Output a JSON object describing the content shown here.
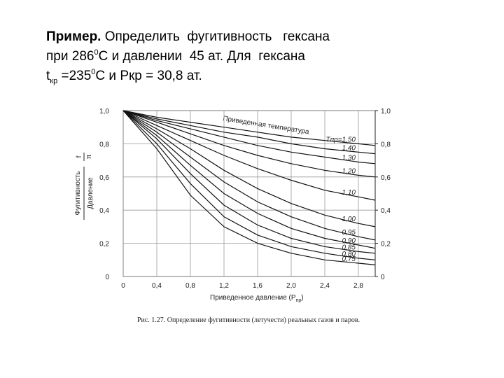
{
  "text": {
    "line1": {
      "bold": "Пример.",
      "rest": " Определить  фугитивность   гексана"
    },
    "line2": [
      "при 286",
      "0",
      "С и давлении  45 ат. Для  гексана"
    ],
    "line3": [
      "t",
      "кр",
      " =235",
      "0",
      "С и Ркр = 30,8 ат."
    ]
  },
  "chart_data": {
    "type": "line",
    "annotation": "Приведенная температура",
    "caption": "Рис. 1.27. Определение фугитивности (летучести) реальных газов и паров.",
    "xlabel": "Приведенное давление (P",
    "xlabel_sub": "пр",
    "xlabel_end": ")",
    "ylabel_top": "Фугитивность",
    "ylabel_bottom": "Давление",
    "ylabel_ratio_top": "f",
    "ylabel_ratio_bottom": "π",
    "x": [
      0,
      0.4,
      0.8,
      1.2,
      1.6,
      2.0,
      2.4,
      2.8,
      3.0
    ],
    "xlim": [
      0,
      3.0
    ],
    "xticks": [
      0,
      {
        "value": 0.4,
        "label": "0,4"
      },
      {
        "value": 0.8,
        "label": "0,8"
      },
      {
        "value": 1.2,
        "label": "1,2"
      },
      {
        "value": 1.6,
        "label": "1,6"
      },
      {
        "value": 2.0,
        "label": "2,0"
      },
      {
        "value": 2.4,
        "label": "2,4"
      },
      {
        "value": 2.8,
        "label": "2,8"
      }
    ],
    "ylim": [
      0,
      1.0
    ],
    "yticks": [
      0,
      {
        "value": 0.2,
        "label": "0,2"
      },
      {
        "value": 0.4,
        "label": "0,4"
      },
      {
        "value": 0.6,
        "label": "0,6"
      },
      {
        "value": 0.8,
        "label": "0,8"
      },
      {
        "value": 1.0,
        "label": "1,0"
      }
    ],
    "y2lim": [
      0,
      1.0
    ],
    "y2ticks": [
      0,
      {
        "value": 0.2,
        "label": "0,2"
      },
      {
        "value": 0.4,
        "label": "0,4"
      },
      {
        "value": 0.6,
        "label": "0,6"
      },
      {
        "value": 0.8,
        "label": "0,8"
      },
      {
        "value": 1.0,
        "label": "1,0"
      }
    ],
    "grid": true,
    "series": [
      {
        "name": "Tпр=1,50",
        "color": "#111111",
        "values": [
          1,
          0.96,
          0.93,
          0.9,
          0.87,
          0.84,
          0.82,
          0.8,
          0.79
        ]
      },
      {
        "name": "1,40",
        "color": "#111111",
        "values": [
          1,
          0.95,
          0.91,
          0.87,
          0.84,
          0.8,
          0.77,
          0.75,
          0.74
        ]
      },
      {
        "name": "1,30",
        "color": "#111111",
        "values": [
          1,
          0.94,
          0.89,
          0.84,
          0.79,
          0.75,
          0.72,
          0.69,
          0.68
        ]
      },
      {
        "name": "1,20",
        "color": "#111111",
        "values": [
          1,
          0.93,
          0.86,
          0.79,
          0.73,
          0.68,
          0.64,
          0.61,
          0.6
        ]
      },
      {
        "name": "1,10",
        "color": "#111111",
        "values": [
          1,
          0.91,
          0.82,
          0.73,
          0.65,
          0.58,
          0.52,
          0.48,
          0.46
        ]
      },
      {
        "name": "1,00",
        "color": "#111111",
        "values": [
          1,
          0.89,
          0.77,
          0.64,
          0.53,
          0.44,
          0.37,
          0.32,
          0.3
        ]
      },
      {
        "name": "0,95",
        "color": "#111111",
        "values": [
          1,
          0.87,
          0.72,
          0.57,
          0.45,
          0.36,
          0.29,
          0.24,
          0.22
        ]
      },
      {
        "name": "0,90",
        "color": "#111111",
        "values": [
          1,
          0.85,
          0.67,
          0.5,
          0.38,
          0.29,
          0.23,
          0.19,
          0.17
        ]
      },
      {
        "name": "0,85",
        "color": "#111111",
        "values": [
          1,
          0.83,
          0.62,
          0.43,
          0.31,
          0.23,
          0.18,
          0.15,
          0.14
        ]
      },
      {
        "name": "0,80",
        "color": "#111111",
        "values": [
          1,
          0.8,
          0.56,
          0.36,
          0.25,
          0.18,
          0.14,
          0.11,
          0.1
        ]
      },
      {
        "name": "0,75",
        "color": "#111111",
        "values": [
          1,
          0.77,
          0.49,
          0.3,
          0.2,
          0.14,
          0.1,
          0.08,
          0.07
        ]
      }
    ]
  }
}
